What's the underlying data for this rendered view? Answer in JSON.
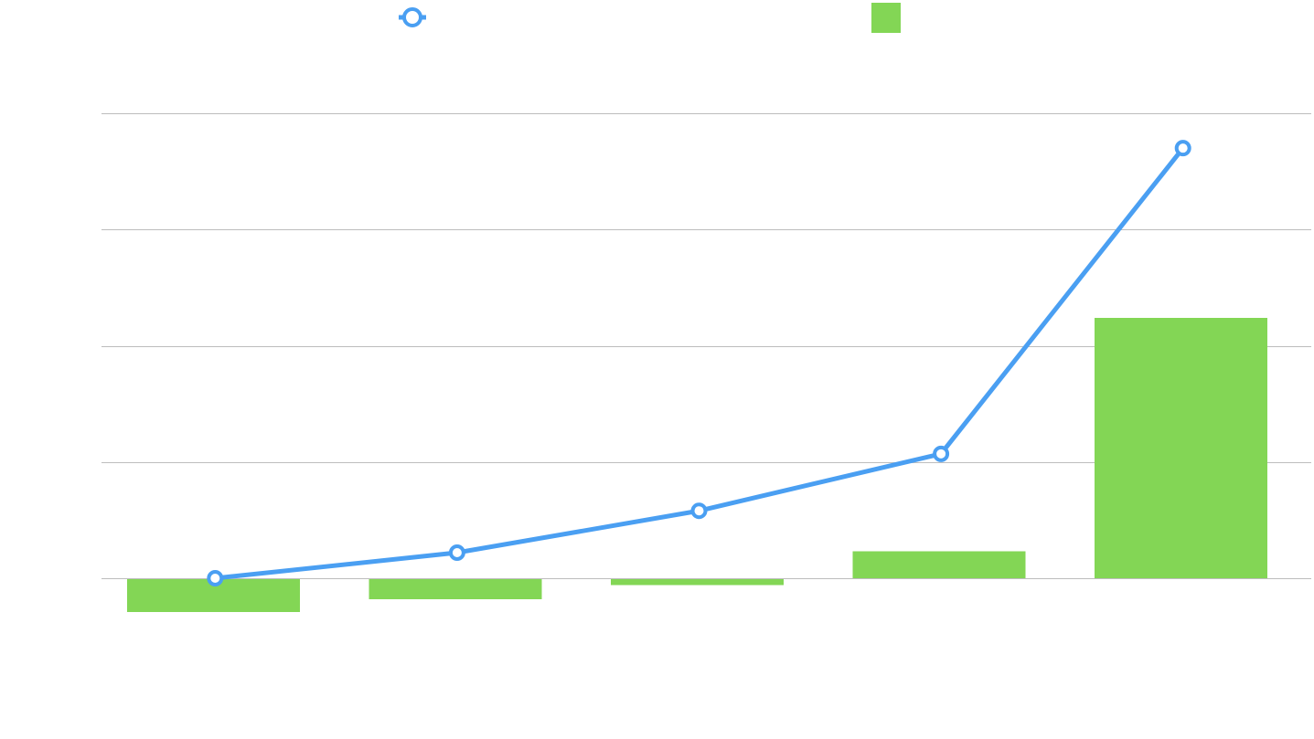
{
  "colors": {
    "line": "#4a9ff2",
    "bar": "#83d655",
    "grid": "#bdbdbd",
    "background": "#ffffff"
  },
  "chart_data": {
    "type": "bar",
    "categories": [
      "",
      "",
      "",
      "",
      ""
    ],
    "series": [
      {
        "type": "line",
        "marker": "circle",
        "values": [
          0.0,
          0.22,
          0.58,
          1.07,
          3.7
        ]
      },
      {
        "type": "bar",
        "values": [
          -0.29,
          -0.18,
          -0.06,
          0.23,
          2.24
        ]
      }
    ],
    "ylim": [
      -1.0,
      4.0
    ],
    "yticks": [
      0,
      1,
      2,
      3,
      4
    ],
    "grid": true,
    "legend_position": "top"
  }
}
